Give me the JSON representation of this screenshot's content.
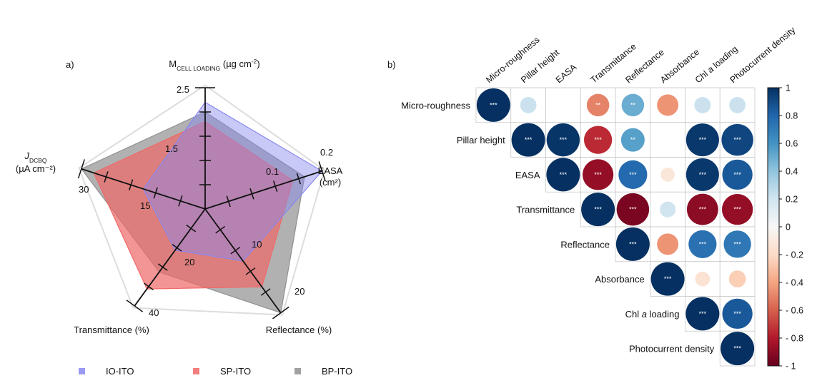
{
  "panel_a": {
    "label": "a)",
    "axes": [
      {
        "name_parts": [
          [
            "M",
            ""
          ],
          [
            "CELL LOADING",
            "sub"
          ],
          [
            " (µg cm",
            ""
          ],
          [
            "-2",
            "sup"
          ],
          [
            ")",
            ""
          ]
        ],
        "name_lines": [],
        "max": 2.5,
        "ticks": [
          1.5,
          2.5
        ]
      },
      {
        "name_parts": [],
        "name_lines": [
          "EASA",
          "(cm²)"
        ],
        "max": 0.2,
        "ticks": [
          0.1,
          0.2
        ]
      },
      {
        "name_parts": [],
        "name_lines": [
          "Reflectance (%)"
        ],
        "max": 20,
        "ticks": [
          10,
          20
        ]
      },
      {
        "name_parts": [],
        "name_lines": [
          "Transmittance (%)"
        ],
        "max": 40,
        "ticks": [
          20,
          40
        ]
      },
      {
        "name_parts": [
          [
            "J",
            ""
          ],
          [
            "DCBQ",
            "sub"
          ]
        ],
        "name_lines": [
          "(µA cm⁻²)"
        ],
        "max": 30,
        "ticks": [
          15,
          30
        ]
      }
    ],
    "legend": [
      "IO-ITO",
      "SP-ITO",
      "BP-ITO"
    ]
  },
  "panel_b": {
    "label": "b)",
    "variables": [
      "Micro-roughness",
      "Pillar height",
      "EASA",
      "Transmittance",
      "Reflectance",
      "Absorbance",
      "Chl a loading",
      "Photocurrent density"
    ],
    "colorbar_ticks": [
      "1",
      "0.8",
      "0.6",
      "0.4",
      "0.2",
      "0",
      "- 0.2",
      "- 0.4",
      "- 0.6",
      "- 0.8",
      "- 1"
    ]
  },
  "colors": {
    "IO-ITO": "#8888f0",
    "SP-ITO": "#f06868",
    "BP-ITO": "#909090",
    "scale": [
      "#67001f",
      "#b2182b",
      "#d6604d",
      "#f4a582",
      "#fddbc7",
      "#f7f7f7",
      "#d1e5f0",
      "#92c5de",
      "#4393c3",
      "#2166ac",
      "#053061"
    ]
  },
  "chart_data": [
    {
      "type": "radar",
      "axes": [
        "M CELL LOADING (µg cm-2)",
        "EASA (cm²)",
        "Reflectance (%)",
        "Transmittance (%)",
        "J DCBQ (µA cm⁻²)"
      ],
      "series": [
        {
          "name": "IO-ITO",
          "values": [
            2.2,
            0.2,
            10,
            17,
            15
          ]
        },
        {
          "name": "SP-ITO",
          "values": [
            1.8,
            0.15,
            15,
            33,
            27
          ]
        },
        {
          "name": "BP-ITO",
          "values": [
            2.0,
            0.17,
            20,
            26,
            30
          ]
        }
      ]
    },
    {
      "type": "heatmap",
      "variables": [
        "Micro-roughness",
        "Pillar height",
        "EASA",
        "Transmittance",
        "Reflectance",
        "Absorbance",
        "Chl a loading",
        "Photocurrent density"
      ],
      "cells": [
        {
          "row": "Micro-roughness",
          "col": "Micro-roughness",
          "r": 1.0,
          "sig": "***"
        },
        {
          "row": "Micro-roughness",
          "col": "Pillar height",
          "r": 0.22,
          "sig": ""
        },
        {
          "row": "Micro-roughness",
          "col": "Transmittance",
          "r": -0.5,
          "sig": "**"
        },
        {
          "row": "Micro-roughness",
          "col": "Reflectance",
          "r": 0.5,
          "sig": "**"
        },
        {
          "row": "Micro-roughness",
          "col": "Absorbance",
          "r": -0.45,
          "sig": ""
        },
        {
          "row": "Micro-roughness",
          "col": "Chl a loading",
          "r": 0.22,
          "sig": ""
        },
        {
          "row": "Micro-roughness",
          "col": "Photocurrent density",
          "r": 0.22,
          "sig": ""
        },
        {
          "row": "Pillar height",
          "col": "Pillar height",
          "r": 1.0,
          "sig": "***"
        },
        {
          "row": "Pillar height",
          "col": "EASA",
          "r": 0.98,
          "sig": "***"
        },
        {
          "row": "Pillar height",
          "col": "Transmittance",
          "r": -0.75,
          "sig": "***"
        },
        {
          "row": "Pillar height",
          "col": "Reflectance",
          "r": 0.55,
          "sig": "**"
        },
        {
          "row": "Pillar height",
          "col": "Chl a loading",
          "r": 0.97,
          "sig": "***"
        },
        {
          "row": "Pillar height",
          "col": "Photocurrent density",
          "r": 0.92,
          "sig": "***"
        },
        {
          "row": "EASA",
          "col": "EASA",
          "r": 1.0,
          "sig": "***"
        },
        {
          "row": "EASA",
          "col": "Transmittance",
          "r": -0.88,
          "sig": "***"
        },
        {
          "row": "EASA",
          "col": "Reflectance",
          "r": 0.78,
          "sig": "***"
        },
        {
          "row": "EASA",
          "col": "Absorbance",
          "r": -0.12,
          "sig": ""
        },
        {
          "row": "EASA",
          "col": "Chl a loading",
          "r": 0.97,
          "sig": "***"
        },
        {
          "row": "EASA",
          "col": "Photocurrent density",
          "r": 0.85,
          "sig": "***"
        },
        {
          "row": "Transmittance",
          "col": "Transmittance",
          "r": 1.0,
          "sig": "***"
        },
        {
          "row": "Transmittance",
          "col": "Reflectance",
          "r": -0.95,
          "sig": "***"
        },
        {
          "row": "Transmittance",
          "col": "Absorbance",
          "r": 0.2,
          "sig": ""
        },
        {
          "row": "Transmittance",
          "col": "Chl a loading",
          "r": -0.9,
          "sig": "***"
        },
        {
          "row": "Transmittance",
          "col": "Photocurrent density",
          "r": -0.88,
          "sig": "***"
        },
        {
          "row": "Reflectance",
          "col": "Reflectance",
          "r": 1.0,
          "sig": "***"
        },
        {
          "row": "Reflectance",
          "col": "Absorbance",
          "r": -0.45,
          "sig": ""
        },
        {
          "row": "Reflectance",
          "col": "Chl a loading",
          "r": 0.75,
          "sig": "***"
        },
        {
          "row": "Reflectance",
          "col": "Photocurrent density",
          "r": 0.72,
          "sig": "***"
        },
        {
          "row": "Absorbance",
          "col": "Absorbance",
          "r": 1.0,
          "sig": "***"
        },
        {
          "row": "Absorbance",
          "col": "Chl a loading",
          "r": -0.15,
          "sig": ""
        },
        {
          "row": "Absorbance",
          "col": "Photocurrent density",
          "r": -0.25,
          "sig": ""
        },
        {
          "row": "Chl a loading",
          "col": "Chl a loading",
          "r": 1.0,
          "sig": "***"
        },
        {
          "row": "Chl a loading",
          "col": "Photocurrent density",
          "r": 0.85,
          "sig": "***"
        },
        {
          "row": "Photocurrent density",
          "col": "Photocurrent density",
          "r": 1.0,
          "sig": "***"
        }
      ],
      "colorbar": {
        "min": -1,
        "max": 1
      }
    }
  ]
}
